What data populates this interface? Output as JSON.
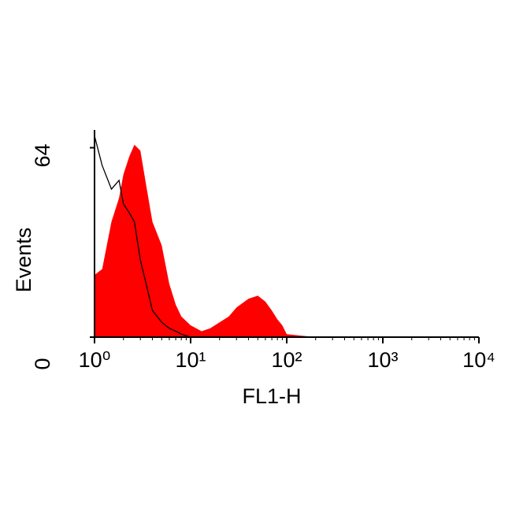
{
  "chart_data": {
    "type": "area",
    "x_label": "FL1-H",
    "y_label": "Events",
    "x": [
      1,
      1.2,
      1.5,
      1.8,
      2,
      2.3,
      2.6,
      3,
      3.5,
      4,
      5,
      6,
      7,
      8,
      10,
      13,
      16,
      20,
      25,
      30,
      40,
      50,
      60,
      70,
      80,
      90,
      100,
      200,
      10000
    ],
    "series": [
      {
        "color": "#ff0000",
        "fill": true,
        "values": [
          21,
          23,
          39,
          47,
          55,
          61,
          65,
          63,
          50,
          39,
          31,
          18,
          11,
          7,
          4,
          2,
          3,
          5,
          7,
          10,
          13,
          14,
          12,
          9,
          6,
          4,
          1,
          0,
          0
        ]
      },
      {
        "color": "#000000",
        "fill": false,
        "values": [
          68,
          58,
          50,
          53,
          45,
          42,
          39,
          26,
          17,
          9,
          5,
          3,
          2,
          1,
          0,
          0,
          0,
          0,
          0,
          0,
          0,
          0,
          0,
          0,
          0,
          0,
          0,
          0,
          0
        ]
      }
    ],
    "xlim": [
      1,
      10000
    ],
    "x_log": true,
    "xticks": [
      {
        "value": 1,
        "label": "10⁰"
      },
      {
        "value": 10,
        "label": "10¹"
      },
      {
        "value": 100,
        "label": "10²"
      },
      {
        "value": 1000,
        "label": "10³"
      },
      {
        "value": 10000,
        "label": "10⁴"
      }
    ],
    "ylim": [
      0,
      70
    ],
    "yticks": [
      0,
      64
    ]
  }
}
